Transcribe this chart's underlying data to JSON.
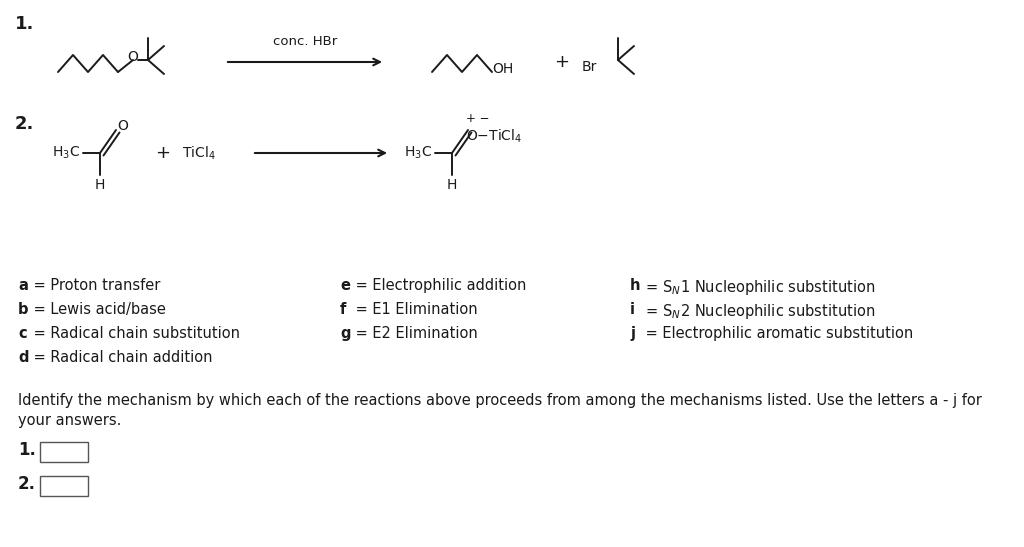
{
  "bg_color": "#ffffff",
  "text_color": "#1a1a1a",
  "figsize": [
    10.24,
    5.47
  ],
  "dpi": 100,
  "conc_HBr": "conc. HBr",
  "mechanisms_col1": [
    [
      "a",
      " = Proton transfer"
    ],
    [
      "b",
      " = Lewis acid/base"
    ],
    [
      "c",
      " = Radical chain substitution"
    ],
    [
      "d",
      " = Radical chain addition"
    ]
  ],
  "mechanisms_col2": [
    [
      "e",
      " = Electrophilic addition"
    ],
    [
      "f",
      " = E1 Elimination"
    ],
    [
      "g",
      " = E2 Elimination"
    ]
  ],
  "mechanisms_col3_letters": [
    "h",
    "i",
    "j"
  ],
  "mechanisms_col3_descs": [
    [
      " = S",
      "N",
      "1 Nucleophilic substitution"
    ],
    [
      " = S",
      "N",
      "2 Nucleophilic substitution"
    ],
    [
      " = Electrophilic aromatic substitution"
    ]
  ],
  "identify_text1": "Identify the mechanism by which each of the reactions above proceeds from among the mechanisms listed. Use the letters a - j for",
  "identify_text2": "your answers.",
  "answer_labels": [
    "1.",
    "2."
  ]
}
